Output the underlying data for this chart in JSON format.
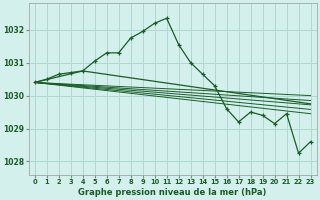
{
  "title": "Graphe pression niveau de la mer (hPa)",
  "background_color": "#d4f0ec",
  "grid_color": "#b0d8d0",
  "line_color": "#1a5c28",
  "ylim": [
    1027.6,
    1032.8
  ],
  "yticks": [
    1028,
    1029,
    1030,
    1031,
    1032
  ],
  "xlim": [
    -0.5,
    23.5
  ],
  "xticks": [
    0,
    1,
    2,
    3,
    4,
    5,
    6,
    7,
    8,
    9,
    10,
    11,
    12,
    13,
    14,
    15,
    16,
    17,
    18,
    19,
    20,
    21,
    22,
    23
  ],
  "series_main": {
    "x": [
      0,
      1,
      2,
      3,
      4,
      5,
      6,
      7,
      8,
      9,
      10,
      11,
      12,
      13,
      14,
      15,
      16,
      17,
      18,
      19,
      20,
      21,
      22,
      23
    ],
    "y": [
      1030.4,
      1030.5,
      1030.65,
      1030.7,
      1030.75,
      1031.05,
      1031.3,
      1031.3,
      1031.75,
      1031.95,
      1032.2,
      1032.35,
      1031.55,
      1031.0,
      1030.65,
      1030.3,
      1029.6,
      1029.2,
      1029.5,
      1029.4,
      1029.15,
      1029.45,
      1028.25,
      1028.6
    ]
  },
  "line_straight": {
    "x": [
      0,
      23
    ],
    "y": [
      1030.4,
      1029.75
    ]
  },
  "line_mid": {
    "x": [
      0,
      23
    ],
    "y": [
      1030.4,
      1029.6
    ]
  },
  "line_low": {
    "x": [
      0,
      23
    ],
    "y": [
      1030.4,
      1029.45
    ]
  },
  "line_lower": {
    "x": [
      0,
      23
    ],
    "y": [
      1030.4,
      1029.3
    ]
  },
  "line_corner": {
    "x": [
      0,
      4,
      23
    ],
    "y": [
      1030.4,
      1030.75,
      1029.75
    ]
  }
}
